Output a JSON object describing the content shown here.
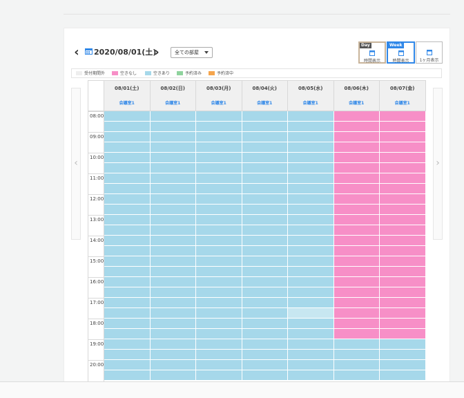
{
  "toolbar": {
    "date_label": "2020/08/01(土)",
    "room_filter": "全ての部屋"
  },
  "view_buttons": {
    "day": {
      "tag": "Day",
      "label": "時間表示"
    },
    "week": {
      "tag": "Week",
      "label": "時間表示"
    },
    "month": {
      "label": "1ヶ月表示"
    }
  },
  "legend": [
    {
      "label": "受付期間外",
      "color": "#eeeeee"
    },
    {
      "label": "空きなし",
      "color": "#f78fc7"
    },
    {
      "label": "空きあり",
      "color": "#a6d8ea"
    },
    {
      "label": "予約済み",
      "color": "#8fd39d"
    },
    {
      "label": "予約済中",
      "color": "#f5a54c"
    }
  ],
  "colors": {
    "available": "#a6d8ea",
    "full": "#f78fc7",
    "highlight": "#c7e7f1",
    "accent": "#2f87e8"
  },
  "columns": [
    {
      "date": "08/01(土)",
      "room": "会議室1",
      "status": "available"
    },
    {
      "date": "08/02(日)",
      "room": "会議室1",
      "status": "available"
    },
    {
      "date": "08/03(月)",
      "room": "会議室1",
      "status": "available"
    },
    {
      "date": "08/04(火)",
      "room": "会議室1",
      "status": "available"
    },
    {
      "date": "08/05(水)",
      "room": "会議室1",
      "status": "available"
    },
    {
      "date": "08/06(木)",
      "room": "会議室1",
      "status": "full_until_1900"
    },
    {
      "date": "08/07(金)",
      "room": "会議室1",
      "status": "full_until_1900"
    }
  ],
  "time_labels": [
    "08:00",
    "09:00",
    "10:00",
    "11:00",
    "12:00",
    "13:00",
    "14:00",
    "15:00",
    "16:00",
    "17:00",
    "18:00",
    "19:00",
    "20:00"
  ],
  "icons": {
    "prev": "chevron-left-icon",
    "next": "chevron-right-icon",
    "calendar": "calendar-icon",
    "dropdown": "caret-down-icon"
  }
}
